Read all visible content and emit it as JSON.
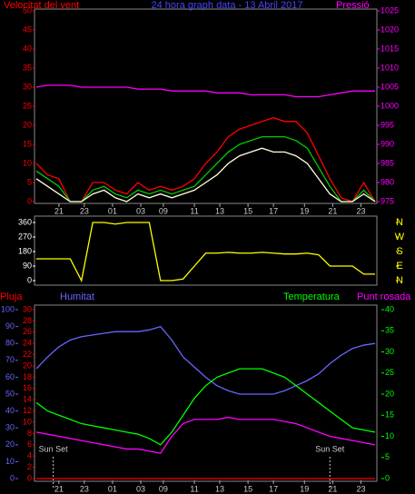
{
  "chart_data": [
    {
      "type": "line",
      "title": "24 hora graph data - 13 Abril 2017",
      "ylabel": "Velocitat del vent",
      "y2label": "Pressió",
      "xlim": [
        0,
        60
      ],
      "xticks": [
        {
          "value": 4,
          "label": "21"
        },
        {
          "value": 8.5,
          "label": "23"
        },
        {
          "value": 13.5,
          "label": "01"
        },
        {
          "value": 18.5,
          "label": "03"
        },
        {
          "value": 22.5,
          "label": "09"
        },
        {
          "value": 28,
          "label": "11"
        },
        {
          "value": 32.5,
          "label": "13"
        },
        {
          "value": 37.5,
          "label": "15"
        },
        {
          "value": 42,
          "label": "17"
        },
        {
          "value": 47.5,
          "label": "19"
        },
        {
          "value": 52.5,
          "label": "21"
        },
        {
          "value": 57.5,
          "label": "23"
        }
      ],
      "ylim": [
        0,
        50
      ],
      "yticks": [
        0,
        5,
        10,
        15,
        20,
        25,
        30,
        35,
        40,
        45,
        50
      ],
      "ycolor": "#ff0000",
      "y2lim": [
        975,
        1025
      ],
      "y2ticks": [
        975,
        980,
        985,
        990,
        995,
        1000,
        1005,
        1010,
        1015,
        1020,
        1025
      ],
      "y2color": "#ff00ff",
      "x": [
        0,
        2,
        4,
        6,
        8,
        10,
        12,
        14,
        16,
        18,
        20,
        22,
        24,
        26,
        28,
        30,
        32,
        34,
        36,
        38,
        40,
        42,
        44,
        46,
        48,
        50,
        52,
        54,
        56,
        58,
        60
      ],
      "series": [
        {
          "color": "#ff0000",
          "values": [
            10,
            7,
            6,
            0,
            0,
            5,
            5,
            3,
            2,
            5,
            3,
            4,
            3,
            4,
            6,
            10,
            13,
            17,
            19,
            20,
            21,
            22,
            21,
            21,
            18,
            12,
            6,
            1,
            0,
            5,
            0
          ]
        },
        {
          "color": "#00cc00",
          "values": [
            8,
            6,
            4,
            0,
            0,
            3,
            4,
            2,
            1,
            3,
            2,
            3,
            2,
            3,
            4,
            7,
            10,
            13,
            15,
            16,
            17,
            17,
            17,
            16,
            14,
            9,
            4,
            0,
            0,
            3,
            0
          ]
        },
        {
          "color": "#ffffe0",
          "values": [
            6,
            4,
            2,
            0,
            0,
            2,
            3,
            1,
            0,
            2,
            1,
            2,
            1,
            2,
            3,
            5,
            7,
            10,
            12,
            13,
            14,
            13,
            13,
            12,
            10,
            6,
            2,
            0,
            0,
            2,
            0
          ]
        },
        {
          "color": "#ff00ff",
          "axis": "y2",
          "values": [
            1005,
            1005.5,
            1005.5,
            1005.5,
            1005,
            1005,
            1005,
            1005,
            1005,
            1004.5,
            1004.5,
            1004.5,
            1004,
            1004,
            1004,
            1004,
            1003.5,
            1003.5,
            1003.5,
            1003,
            1003,
            1003,
            1003,
            1002.5,
            1002.5,
            1002.5,
            1003,
            1003.5,
            1004,
            1004,
            1004
          ]
        }
      ]
    },
    {
      "type": "line",
      "xlim": [
        0,
        60
      ],
      "ylim": [
        0,
        360
      ],
      "yticks": [
        0,
        90,
        180,
        270,
        360
      ],
      "ycolor": "#ffffff",
      "y2lim": [
        0,
        360
      ],
      "y2ticks": [
        {
          "value": 0,
          "label": "N"
        },
        {
          "value": 90,
          "label": "E"
        },
        {
          "value": 180,
          "label": "S"
        },
        {
          "value": 270,
          "label": "W"
        },
        {
          "value": 360,
          "label": "N"
        }
      ],
      "y2color": "#ffff00",
      "x": [
        0,
        2,
        4,
        6,
        8,
        10,
        12,
        14,
        16,
        18,
        20,
        22,
        24,
        26,
        28,
        30,
        32,
        34,
        36,
        38,
        40,
        42,
        44,
        46,
        48,
        50,
        52,
        54,
        56,
        58,
        60
      ],
      "series": [
        {
          "color": "#ffff00",
          "values": [
            135,
            135,
            135,
            135,
            0,
            360,
            360,
            350,
            360,
            360,
            360,
            0,
            0,
            10,
            90,
            170,
            170,
            175,
            170,
            170,
            175,
            170,
            165,
            165,
            170,
            160,
            90,
            90,
            90,
            40,
            40
          ]
        }
      ]
    },
    {
      "type": "line",
      "xlim": [
        0,
        60
      ],
      "xticks": [
        {
          "value": 4,
          "label": "21"
        },
        {
          "value": 8.5,
          "label": "23"
        },
        {
          "value": 13.5,
          "label": "01"
        },
        {
          "value": 18.5,
          "label": "03"
        },
        {
          "value": 22.5,
          "label": "09"
        },
        {
          "value": 28,
          "label": "11"
        },
        {
          "value": 32.5,
          "label": "13"
        },
        {
          "value": 37.5,
          "label": "15"
        },
        {
          "value": 42,
          "label": "17"
        },
        {
          "value": 47.5,
          "label": "19"
        },
        {
          "value": 52.5,
          "label": "21"
        },
        {
          "value": 57.5,
          "label": "23"
        }
      ],
      "ylim": [
        0,
        30
      ],
      "yticks": [
        0,
        2,
        4,
        6,
        8,
        10,
        12,
        14,
        16,
        18,
        20,
        22,
        24,
        26,
        28,
        30
      ],
      "ycolor": "#ff0000",
      "y3lim": [
        0,
        100
      ],
      "y3ticks": [
        0,
        10,
        20,
        30,
        40,
        50,
        60,
        70,
        80,
        90,
        100
      ],
      "y3color": "#6666ff",
      "y2lim": [
        0,
        40
      ],
      "y2ticks": [
        0,
        5,
        10,
        15,
        20,
        25,
        30,
        35,
        40
      ],
      "y2color": "#00ff00",
      "annotations": [
        {
          "text": "Sun Set",
          "x": 3
        },
        {
          "text": "Sun Set",
          "x": 52
        }
      ],
      "x": [
        0,
        2,
        4,
        6,
        8,
        10,
        12,
        14,
        16,
        18,
        20,
        22,
        24,
        26,
        28,
        30,
        32,
        34,
        36,
        38,
        40,
        42,
        44,
        46,
        48,
        50,
        52,
        54,
        56,
        58,
        60
      ],
      "series": [
        {
          "name": "Pluja",
          "color": "#ff0000",
          "values": [
            0,
            0,
            0,
            0,
            0,
            0,
            0,
            0,
            0,
            0,
            0,
            0,
            0,
            0,
            0,
            0,
            0,
            0,
            0,
            0,
            0,
            0,
            0,
            0,
            0,
            0,
            0,
            0,
            0,
            0,
            0
          ]
        },
        {
          "name": "Humitat",
          "color": "#6666ff",
          "axis": "y3",
          "values": [
            65,
            72,
            78,
            82,
            84,
            85,
            86,
            87,
            87,
            87,
            88,
            90,
            82,
            72,
            66,
            60,
            55,
            52,
            50,
            50,
            50,
            50,
            52,
            55,
            58,
            62,
            68,
            73,
            77,
            79,
            80
          ]
        },
        {
          "name": "Temperatura",
          "color": "#00ff00",
          "axis": "y2",
          "values": [
            18,
            16,
            15,
            14,
            13,
            12.5,
            12,
            11.5,
            11,
            10.5,
            9.5,
            8,
            11,
            15,
            19,
            22,
            24,
            25,
            26,
            26,
            26,
            25,
            24,
            22,
            20,
            18,
            16,
            14,
            12,
            11.5,
            11
          ]
        },
        {
          "name": "Punt rosada",
          "color": "#ff00ff",
          "axis": "y2",
          "values": [
            11,
            10.5,
            10,
            9.5,
            9,
            8.5,
            8,
            7.5,
            7,
            7,
            6.5,
            6,
            10,
            13,
            14,
            14,
            14,
            14.5,
            14,
            14,
            14,
            14,
            13.5,
            13,
            12,
            11,
            10,
            9.5,
            9,
            8.5,
            8
          ]
        }
      ]
    }
  ]
}
